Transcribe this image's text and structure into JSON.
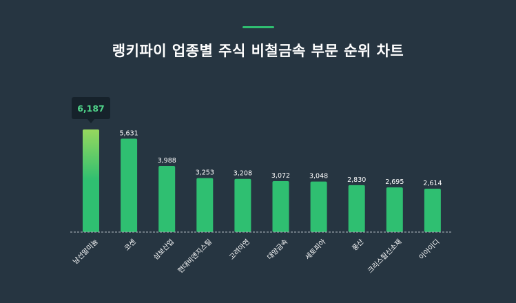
{
  "title": "랭키파이 업종별 주식 비철금속 부문 순위 차트",
  "colors": {
    "background": "#263541",
    "bar": "#2fbf71",
    "bar_highlight_top": "#96d85e",
    "tooltip_bg": "#16222b",
    "tooltip_text": "#4fd389",
    "baseline": "#9aa4ab"
  },
  "chart_data": {
    "type": "bar",
    "categories": [
      "남선알미늄",
      "코센",
      "삼보산업",
      "현대비앤지스틸",
      "고려아연",
      "대양금속",
      "세토피아",
      "풍산",
      "크리스탈신소재",
      "이아이디"
    ],
    "values": [
      6187,
      5631,
      3988,
      3253,
      3208,
      3072,
      3048,
      2830,
      2695,
      2614
    ],
    "value_labels": [
      "6,187",
      "5,631",
      "3,988",
      "3,253",
      "3,208",
      "3,072",
      "3,048",
      "2,830",
      "2,695",
      "2,614"
    ],
    "highlight_index": 0,
    "grid": false,
    "legend": "none"
  }
}
